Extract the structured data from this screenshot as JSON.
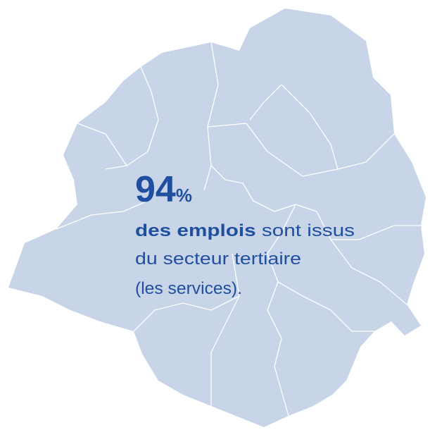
{
  "stat": {
    "value": "94",
    "unit": "%"
  },
  "text": {
    "bold": "des emplois",
    "line1_rest": "sont issus",
    "line2": "du secteur tertiaire",
    "line3": "(les services)."
  }
}
